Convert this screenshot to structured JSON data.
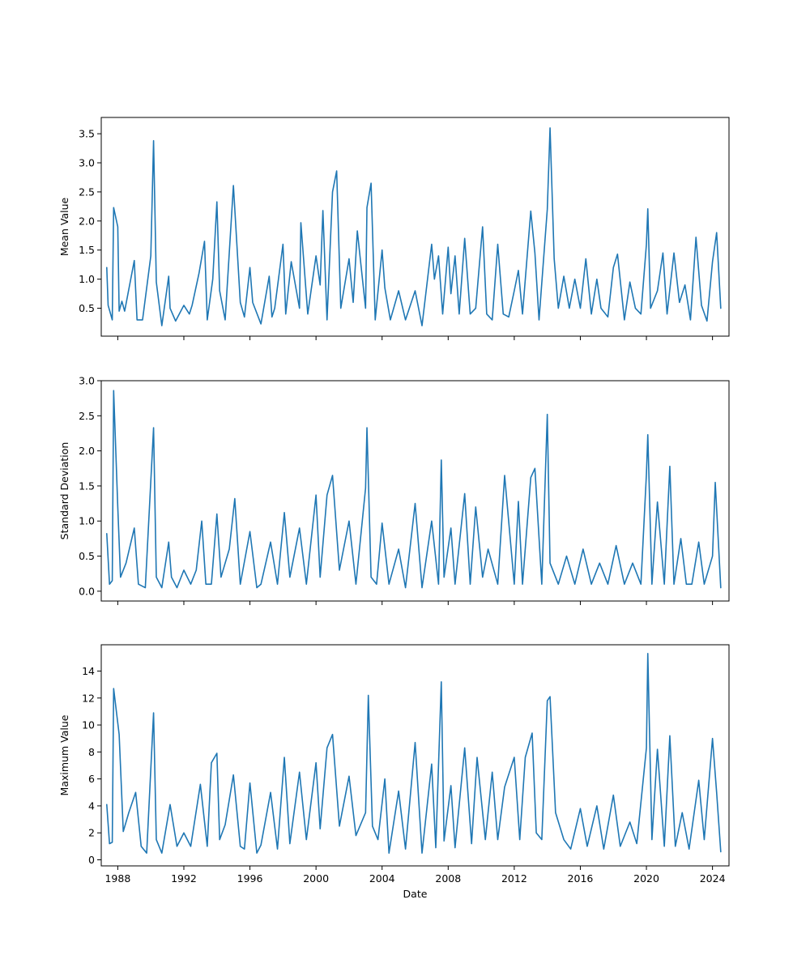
{
  "chart_data": [
    {
      "type": "line",
      "ylabel": "Mean Value",
      "xlabel": "",
      "xlim": [
        "1987-01-01",
        "2024-12-31"
      ],
      "ylim": [
        0.02,
        3.78
      ],
      "yticks": [
        0.5,
        1.0,
        1.5,
        2.0,
        2.5,
        3.0,
        3.5
      ],
      "ytick_labels": [
        "0.5",
        "1.0",
        "1.5",
        "2.0",
        "2.5",
        "3.0",
        "3.5"
      ],
      "color": "#1f77b4",
      "series": [
        {
          "x": [
            "1987-05",
            "1987-06",
            "1987-09",
            "1987-10",
            "1988-01",
            "1988-02",
            "1988-04",
            "1988-06",
            "1989-01",
            "1989-03",
            "1989-07",
            "1990-01",
            "1990-03",
            "1990-05",
            "1990-09",
            "1991-02",
            "1991-03",
            "1991-07",
            "1992-01",
            "1992-05",
            "1992-07",
            "1992-12",
            "1993-04",
            "1993-06",
            "1993-10",
            "1994-01",
            "1994-03",
            "1994-07",
            "1995-01",
            "1995-06",
            "1995-09",
            "1996-01",
            "1996-03",
            "1996-09",
            "1997-03",
            "1997-05",
            "1997-07",
            "1998-01",
            "1998-03",
            "1998-07",
            "1999-01",
            "1999-02",
            "1999-07",
            "2000-01",
            "2000-04",
            "2000-06",
            "2000-09",
            "2001-01",
            "2001-04",
            "2001-07",
            "2002-01",
            "2002-04",
            "2002-07",
            "2003-01",
            "2003-02",
            "2003-05",
            "2003-08",
            "2004-01",
            "2004-03",
            "2004-07",
            "2005-01",
            "2005-06",
            "2006-01",
            "2006-06",
            "2007-01",
            "2007-03",
            "2007-06",
            "2007-09",
            "2008-01",
            "2008-03",
            "2008-06",
            "2008-09",
            "2009-01",
            "2009-05",
            "2009-09",
            "2010-02",
            "2010-05",
            "2010-09",
            "2011-01",
            "2011-05",
            "2011-09",
            "2012-01",
            "2012-04",
            "2012-07",
            "2013-01",
            "2013-04",
            "2013-07",
            "2014-01",
            "2014-03",
            "2014-06",
            "2014-09",
            "2015-01",
            "2015-05",
            "2015-09",
            "2016-01",
            "2016-05",
            "2016-09",
            "2017-01",
            "2017-04",
            "2017-09",
            "2018-01",
            "2018-04",
            "2018-09",
            "2019-01",
            "2019-05",
            "2019-09",
            "2020-01",
            "2020-02",
            "2020-04",
            "2020-09",
            "2021-01",
            "2021-04",
            "2021-09",
            "2022-01",
            "2022-05",
            "2022-09",
            "2023-01",
            "2023-05",
            "2023-09",
            "2024-01",
            "2024-04",
            "2024-07"
          ],
          "y": [
            1.2,
            0.55,
            0.3,
            2.23,
            1.9,
            0.45,
            0.62,
            0.45,
            1.32,
            0.3,
            0.3,
            1.4,
            3.38,
            0.95,
            0.2,
            1.05,
            0.5,
            0.28,
            0.55,
            0.4,
            0.55,
            1.1,
            1.65,
            0.3,
            1.0,
            2.33,
            0.8,
            0.3,
            2.61,
            0.6,
            0.35,
            1.2,
            0.6,
            0.23,
            1.05,
            0.35,
            0.5,
            1.6,
            0.4,
            1.3,
            0.5,
            1.97,
            0.4,
            1.4,
            0.9,
            2.18,
            0.3,
            2.5,
            2.86,
            0.5,
            1.35,
            0.6,
            1.83,
            0.5,
            2.23,
            2.65,
            0.3,
            1.5,
            0.85,
            0.3,
            0.8,
            0.3,
            0.8,
            0.2,
            1.6,
            1.0,
            1.4,
            0.4,
            1.55,
            0.75,
            1.4,
            0.4,
            1.7,
            0.4,
            0.5,
            1.9,
            0.4,
            0.3,
            1.6,
            0.4,
            0.35,
            0.8,
            1.15,
            0.4,
            2.17,
            1.45,
            0.3,
            2.2,
            3.6,
            1.35,
            0.5,
            1.05,
            0.5,
            1.0,
            0.5,
            1.35,
            0.4,
            1.0,
            0.5,
            0.35,
            1.2,
            1.43,
            0.3,
            0.95,
            0.5,
            0.4,
            1.6,
            2.21,
            0.5,
            0.8,
            1.45,
            0.4,
            1.45,
            0.6,
            0.9,
            0.3,
            1.72,
            0.55,
            0.28,
            1.3,
            1.8,
            0.5
          ]
        }
      ]
    },
    {
      "type": "line",
      "ylabel": "Standard Deviation",
      "xlabel": "",
      "xlim": [
        "1987-01-01",
        "2024-12-31"
      ],
      "ylim": [
        -0.14,
        3.0
      ],
      "yticks": [
        0.0,
        0.5,
        1.0,
        1.5,
        2.0,
        2.5,
        3.0
      ],
      "ytick_labels": [
        "0.0",
        "0.5",
        "1.0",
        "1.5",
        "2.0",
        "2.5",
        "3.0"
      ],
      "color": "#1f77b4",
      "series": [
        {
          "x": [
            "1987-05",
            "1987-07",
            "1987-09",
            "1987-10",
            "1988-01",
            "1988-03",
            "1988-07",
            "1989-01",
            "1989-04",
            "1989-09",
            "1990-03",
            "1990-05",
            "1990-09",
            "1991-02",
            "1991-04",
            "1991-08",
            "1992-01",
            "1992-06",
            "1992-10",
            "1993-02",
            "1993-05",
            "1993-09",
            "1994-01",
            "1994-04",
            "1994-10",
            "1995-02",
            "1995-06",
            "1996-01",
            "1996-06",
            "1996-09",
            "1997-04",
            "1997-09",
            "1998-02",
            "1998-06",
            "1999-01",
            "1999-06",
            "2000-01",
            "2000-04",
            "2000-09",
            "2001-01",
            "2001-06",
            "2002-01",
            "2002-06",
            "2003-01",
            "2003-02",
            "2003-05",
            "2003-09",
            "2004-01",
            "2004-06",
            "2005-01",
            "2005-06",
            "2006-01",
            "2006-06",
            "2007-01",
            "2007-06",
            "2007-08",
            "2007-10",
            "2008-03",
            "2008-06",
            "2009-01",
            "2009-05",
            "2009-09",
            "2010-02",
            "2010-06",
            "2011-01",
            "2011-06",
            "2012-01",
            "2012-04",
            "2012-07",
            "2013-01",
            "2013-04",
            "2013-09",
            "2014-01",
            "2014-03",
            "2014-09",
            "2015-03",
            "2015-09",
            "2016-03",
            "2016-09",
            "2017-03",
            "2017-09",
            "2018-03",
            "2018-09",
            "2019-03",
            "2019-09",
            "2020-01",
            "2020-02",
            "2020-05",
            "2020-09",
            "2021-02",
            "2021-06",
            "2021-09",
            "2022-02",
            "2022-06",
            "2022-10",
            "2023-03",
            "2023-07",
            "2024-01",
            "2024-03",
            "2024-07"
          ],
          "y": [
            0.82,
            0.1,
            0.15,
            2.86,
            1.2,
            0.2,
            0.4,
            0.9,
            0.1,
            0.05,
            2.33,
            0.2,
            0.05,
            0.7,
            0.2,
            0.05,
            0.3,
            0.1,
            0.3,
            1.0,
            0.1,
            0.1,
            1.1,
            0.2,
            0.6,
            1.32,
            0.1,
            0.85,
            0.05,
            0.1,
            0.7,
            0.1,
            1.12,
            0.2,
            0.9,
            0.1,
            1.37,
            0.2,
            1.37,
            1.65,
            0.3,
            1.0,
            0.1,
            1.47,
            2.33,
            0.2,
            0.1,
            0.97,
            0.1,
            0.6,
            0.05,
            1.25,
            0.05,
            1.0,
            0.1,
            1.87,
            0.2,
            0.9,
            0.1,
            1.39,
            0.1,
            1.2,
            0.2,
            0.6,
            0.1,
            1.65,
            0.1,
            1.28,
            0.1,
            1.62,
            1.75,
            0.1,
            2.52,
            0.4,
            0.1,
            0.5,
            0.1,
            0.6,
            0.1,
            0.4,
            0.1,
            0.65,
            0.1,
            0.4,
            0.1,
            1.67,
            2.23,
            0.1,
            1.27,
            0.1,
            1.78,
            0.1,
            0.75,
            0.1,
            0.1,
            0.7,
            0.1,
            0.5,
            1.55,
            0.05
          ]
        }
      ]
    },
    {
      "type": "line",
      "ylabel": "Maximum Value",
      "xlabel": "Date",
      "xlim": [
        "1987-01-01",
        "2024-12-31"
      ],
      "ylim": [
        -0.45,
        15.95
      ],
      "yticks": [
        0,
        2,
        4,
        6,
        8,
        10,
        12,
        14
      ],
      "ytick_labels": [
        "0",
        "2",
        "4",
        "6",
        "8",
        "10",
        "12",
        "14"
      ],
      "xticks": [
        "1988-01-01",
        "1992-01-01",
        "1996-01-01",
        "2000-01-01",
        "2004-01-01",
        "2008-01-01",
        "2012-01-01",
        "2016-01-01",
        "2020-01-01",
        "2024-01-01"
      ],
      "xtick_labels": [
        "1988",
        "1992",
        "1996",
        "2000",
        "2004",
        "2008",
        "2012",
        "2016",
        "2020",
        "2024"
      ],
      "color": "#1f77b4",
      "series": [
        {
          "x": [
            "1987-05",
            "1987-07",
            "1987-09",
            "1987-10",
            "1988-02",
            "1988-05",
            "1988-09",
            "1989-02",
            "1989-06",
            "1989-10",
            "1990-03",
            "1990-05",
            "1990-09",
            "1991-03",
            "1991-08",
            "1992-01",
            "1992-06",
            "1993-01",
            "1993-06",
            "1993-09",
            "1994-01",
            "1994-03",
            "1994-07",
            "1995-01",
            "1995-06",
            "1995-09",
            "1996-01",
            "1996-06",
            "1996-09",
            "1997-04",
            "1997-09",
            "1998-02",
            "1998-06",
            "1999-01",
            "1999-06",
            "2000-01",
            "2000-04",
            "2000-09",
            "2001-01",
            "2001-06",
            "2002-01",
            "2002-06",
            "2003-01",
            "2003-03",
            "2003-06",
            "2003-10",
            "2004-03",
            "2004-06",
            "2005-01",
            "2005-06",
            "2006-01",
            "2006-06",
            "2007-01",
            "2007-04",
            "2007-08",
            "2007-10",
            "2008-03",
            "2008-06",
            "2009-01",
            "2009-06",
            "2009-10",
            "2010-04",
            "2010-09",
            "2011-01",
            "2011-06",
            "2012-01",
            "2012-05",
            "2012-09",
            "2013-02",
            "2013-05",
            "2013-09",
            "2014-01",
            "2014-03",
            "2014-07",
            "2015-01",
            "2015-06",
            "2016-01",
            "2016-06",
            "2017-01",
            "2017-06",
            "2018-01",
            "2018-06",
            "2019-01",
            "2019-06",
            "2020-01",
            "2020-02",
            "2020-05",
            "2020-09",
            "2021-02",
            "2021-06",
            "2021-10",
            "2022-03",
            "2022-08",
            "2023-03",
            "2023-07",
            "2024-01",
            "2024-04",
            "2024-07"
          ],
          "y": [
            4.1,
            1.2,
            1.3,
            12.7,
            9.3,
            2.1,
            3.5,
            5.0,
            1.0,
            0.5,
            10.9,
            1.5,
            0.5,
            4.1,
            1.0,
            2.0,
            1.0,
            5.6,
            1.0,
            7.2,
            7.9,
            1.5,
            2.6,
            6.3,
            1.0,
            0.8,
            5.7,
            0.5,
            1.1,
            5.0,
            0.8,
            7.6,
            1.2,
            6.5,
            1.5,
            7.2,
            2.3,
            8.3,
            9.3,
            2.5,
            6.2,
            1.8,
            3.5,
            12.2,
            2.5,
            1.5,
            6.0,
            0.5,
            5.1,
            0.8,
            8.7,
            0.5,
            7.1,
            0.9,
            13.2,
            1.4,
            5.5,
            0.9,
            8.3,
            1.2,
            7.6,
            1.5,
            6.5,
            1.5,
            5.4,
            7.6,
            1.5,
            7.6,
            9.4,
            2.0,
            1.5,
            11.8,
            12.1,
            3.5,
            1.5,
            0.8,
            3.8,
            1.0,
            4.0,
            0.8,
            4.8,
            1.0,
            2.8,
            1.2,
            8.3,
            15.3,
            1.5,
            8.2,
            1.0,
            9.2,
            1.0,
            3.5,
            0.8,
            5.9,
            1.5,
            9.0,
            5.0,
            0.6
          ]
        }
      ]
    }
  ]
}
